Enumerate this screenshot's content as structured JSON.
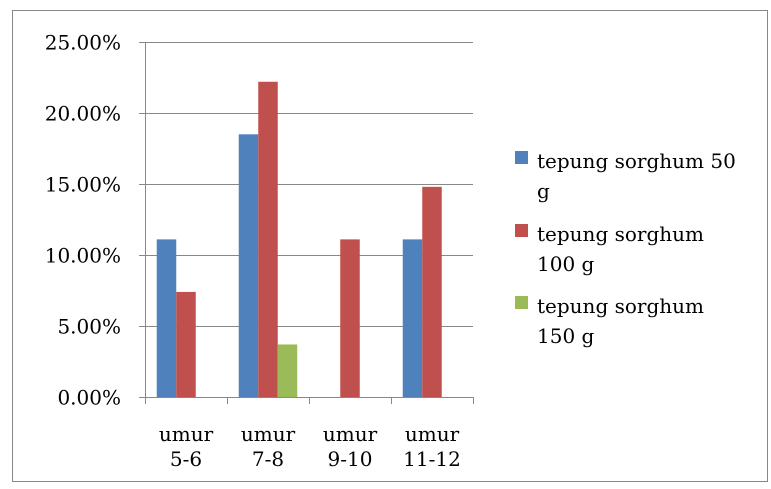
{
  "chart_data": {
    "type": "bar",
    "title": "",
    "xlabel": "",
    "ylabel": "",
    "categories": [
      [
        "umur",
        "5-6"
      ],
      [
        "umur",
        "7-8"
      ],
      [
        "umur",
        "9-10"
      ],
      [
        "umur",
        "11-12"
      ]
    ],
    "series": [
      {
        "name": [
          "tepung sorghum 50",
          "g"
        ],
        "color": "#4F81BD",
        "values": [
          0.111,
          0.185,
          0,
          0.111
        ]
      },
      {
        "name": [
          "tepung sorghum",
          "100 g"
        ],
        "color": "#C0504D",
        "values": [
          0.074,
          0.222,
          0.111,
          0.148
        ]
      },
      {
        "name": [
          "tepung sorghum",
          "150 g"
        ],
        "color": "#9BBB59",
        "values": [
          0,
          0.037,
          0,
          0
        ]
      }
    ],
    "ylim": [
      0,
      0.25
    ],
    "yticks": [
      0,
      0.05,
      0.1,
      0.15,
      0.2,
      0.25
    ],
    "ytick_labels": [
      "0.00%",
      "5.00%",
      "10.00%",
      "15.00%",
      "20.00%",
      "25.00%"
    ],
    "grid": "horizontal",
    "legend_position": "right"
  }
}
